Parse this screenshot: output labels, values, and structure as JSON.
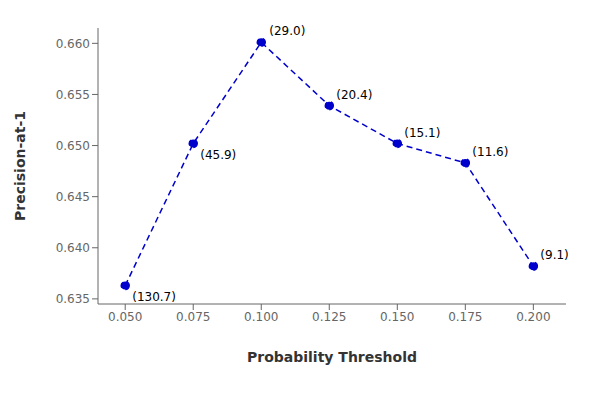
{
  "chart_data": {
    "type": "line",
    "x": [
      0.05,
      0.075,
      0.1,
      0.125,
      0.15,
      0.175,
      0.2
    ],
    "values": [
      0.6363,
      0.6502,
      0.6601,
      0.6539,
      0.6502,
      0.6483,
      0.6382
    ],
    "annotations": [
      "(130.7)",
      "(45.9)",
      "(29.0)",
      "(20.4)",
      "(15.1)",
      "(11.6)",
      "(9.1)"
    ],
    "color": "#0000cc",
    "marker": "circle",
    "line_style": "dashed",
    "xlabel": "Probability Threshold",
    "ylabel": "Precision-at-1",
    "xlim": [
      0.04,
      0.212
    ],
    "ylim": [
      0.6345,
      0.6615
    ],
    "xticks": [
      {
        "value": 0.05,
        "label": "0.050"
      },
      0.075,
      {
        "value": 0.1,
        "label": "0.100"
      },
      0.125,
      {
        "value": 0.15,
        "label": "0.150"
      },
      0.175,
      {
        "value": 0.2,
        "label": "0.200"
      }
    ],
    "yticks": [
      0.635,
      {
        "value": 0.64,
        "label": "0.640"
      },
      0.645,
      {
        "value": 0.65,
        "label": "0.650"
      },
      0.655,
      {
        "value": 0.66,
        "label": "0.660"
      }
    ],
    "grid": false
  }
}
